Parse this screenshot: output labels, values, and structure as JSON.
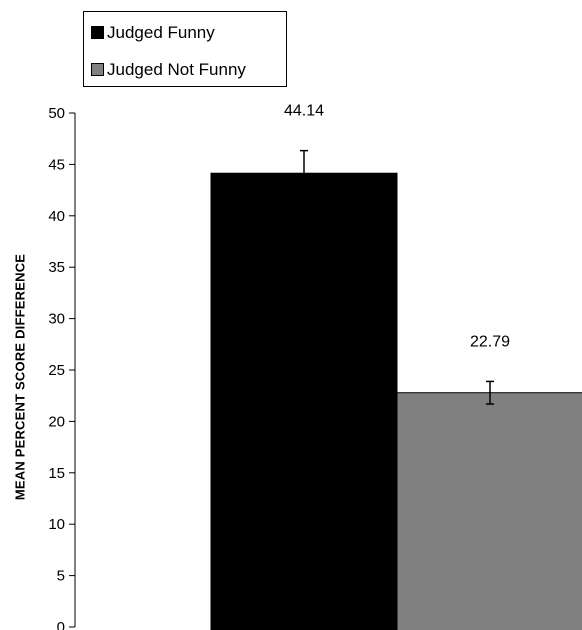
{
  "legend": {
    "items": [
      {
        "label": "Judged Funny",
        "color": "#000000"
      },
      {
        "label": "Judged Not Funny",
        "color": "#808080"
      }
    ]
  },
  "chart_data": {
    "type": "bar",
    "title": "",
    "xlabel": "",
    "ylabel": "MEAN PERCENT SCORE DIFFERENCE",
    "ylim": [
      0,
      50
    ],
    "yticks": [
      0,
      5,
      10,
      15,
      20,
      25,
      30,
      35,
      40,
      45,
      50
    ],
    "grid": false,
    "legend_position": "top-left",
    "series": [
      {
        "name": "Judged Funny",
        "value": 44.14,
        "error": 2.2,
        "color": "#000000",
        "data_label": "44.14"
      },
      {
        "name": "Judged Not Funny",
        "value": 22.79,
        "error": 1.1,
        "color": "#808080",
        "data_label": "22.79"
      }
    ]
  }
}
